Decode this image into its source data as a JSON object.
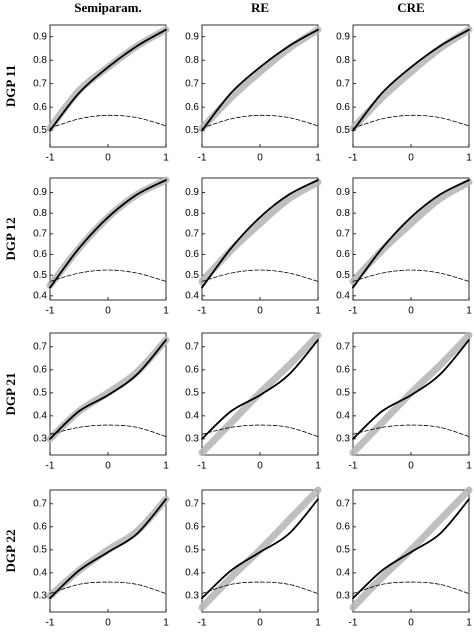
{
  "column_titles": [
    "Semiparam.",
    "RE",
    "CRE"
  ],
  "row_labels": [
    "DGP 11",
    "DGP 12",
    "DGP 21",
    "DGP 22"
  ],
  "chart_data": [
    {
      "type": "line",
      "x": [
        -1,
        -0.5,
        0,
        0.5,
        1
      ],
      "xlim": [
        -1,
        1
      ],
      "xticks": [
        -1,
        0,
        1
      ],
      "ylim": [
        0.43,
        0.95
      ],
      "yticks": [
        0.5,
        0.6,
        0.7,
        0.8,
        0.9
      ],
      "series": [
        {
          "color": "#b4b4b4",
          "line_style": "band",
          "values": [
            0.51,
            0.67,
            0.77,
            0.86,
            0.93
          ]
        },
        {
          "color": "#000000",
          "line_style": "solid",
          "values": [
            0.5,
            0.66,
            0.77,
            0.86,
            0.93
          ]
        },
        {
          "color": "#000000",
          "line_style": "dashed",
          "values": [
            0.51,
            0.55,
            0.565,
            0.555,
            0.52
          ]
        }
      ]
    },
    {
      "type": "line",
      "x": [
        -1,
        -0.5,
        0,
        0.5,
        1
      ],
      "xlim": [
        -1,
        1
      ],
      "xticks": [
        -1,
        0,
        1
      ],
      "ylim": [
        0.43,
        0.95
      ],
      "yticks": [
        0.5,
        0.6,
        0.7,
        0.8,
        0.9
      ],
      "series": [
        {
          "color": "#b4b4b4",
          "line_style": "band",
          "values": [
            0.51,
            0.64,
            0.75,
            0.85,
            0.93
          ]
        },
        {
          "color": "#000000",
          "line_style": "solid",
          "values": [
            0.5,
            0.66,
            0.77,
            0.86,
            0.93
          ]
        },
        {
          "color": "#000000",
          "line_style": "dashed",
          "values": [
            0.51,
            0.55,
            0.565,
            0.555,
            0.52
          ]
        }
      ]
    },
    {
      "type": "line",
      "x": [
        -1,
        -0.5,
        0,
        0.5,
        1
      ],
      "xlim": [
        -1,
        1
      ],
      "xticks": [
        -1,
        0,
        1
      ],
      "ylim": [
        0.43,
        0.95
      ],
      "yticks": [
        0.5,
        0.6,
        0.7,
        0.8,
        0.9
      ],
      "series": [
        {
          "color": "#b4b4b4",
          "line_style": "band",
          "values": [
            0.51,
            0.64,
            0.75,
            0.85,
            0.93
          ]
        },
        {
          "color": "#000000",
          "line_style": "solid",
          "values": [
            0.5,
            0.66,
            0.77,
            0.86,
            0.93
          ]
        },
        {
          "color": "#000000",
          "line_style": "dashed",
          "values": [
            0.51,
            0.55,
            0.565,
            0.555,
            0.52
          ]
        }
      ]
    },
    {
      "type": "line",
      "x": [
        -1,
        -0.5,
        0,
        0.5,
        1
      ],
      "xlim": [
        -1,
        1
      ],
      "xticks": [
        -1,
        0,
        1
      ],
      "ylim": [
        0.38,
        0.97
      ],
      "yticks": [
        0.4,
        0.5,
        0.6,
        0.7,
        0.8,
        0.9
      ],
      "series": [
        {
          "color": "#b4b4b4",
          "line_style": "band",
          "values": [
            0.45,
            0.63,
            0.78,
            0.89,
            0.96
          ]
        },
        {
          "color": "#000000",
          "line_style": "solid",
          "values": [
            0.44,
            0.63,
            0.78,
            0.89,
            0.96
          ]
        },
        {
          "color": "#000000",
          "line_style": "dashed",
          "values": [
            0.47,
            0.51,
            0.525,
            0.51,
            0.47
          ]
        }
      ]
    },
    {
      "type": "line",
      "x": [
        -1,
        -0.5,
        0,
        0.5,
        1
      ],
      "xlim": [
        -1,
        1
      ],
      "xticks": [
        -1,
        0,
        1
      ],
      "ylim": [
        0.38,
        0.97
      ],
      "yticks": [
        0.4,
        0.5,
        0.6,
        0.7,
        0.8,
        0.9
      ],
      "series": [
        {
          "color": "#b4b4b4",
          "line_style": "band",
          "values": [
            0.47,
            0.62,
            0.75,
            0.87,
            0.95
          ]
        },
        {
          "color": "#000000",
          "line_style": "solid",
          "values": [
            0.44,
            0.63,
            0.78,
            0.89,
            0.96
          ]
        },
        {
          "color": "#000000",
          "line_style": "dashed",
          "values": [
            0.47,
            0.51,
            0.525,
            0.51,
            0.47
          ]
        }
      ]
    },
    {
      "type": "line",
      "x": [
        -1,
        -0.5,
        0,
        0.5,
        1
      ],
      "xlim": [
        -1,
        1
      ],
      "xticks": [
        -1,
        0,
        1
      ],
      "ylim": [
        0.38,
        0.97
      ],
      "yticks": [
        0.4,
        0.5,
        0.6,
        0.7,
        0.8,
        0.9
      ],
      "series": [
        {
          "color": "#b4b4b4",
          "line_style": "band",
          "values": [
            0.47,
            0.62,
            0.75,
            0.87,
            0.95
          ]
        },
        {
          "color": "#000000",
          "line_style": "solid",
          "values": [
            0.44,
            0.63,
            0.78,
            0.89,
            0.96
          ]
        },
        {
          "color": "#000000",
          "line_style": "dashed",
          "values": [
            0.47,
            0.51,
            0.525,
            0.51,
            0.47
          ]
        }
      ]
    },
    {
      "type": "line",
      "x": [
        -1,
        -0.5,
        0,
        0.5,
        1
      ],
      "xlim": [
        -1,
        1
      ],
      "xticks": [
        -1,
        0,
        1
      ],
      "ylim": [
        0.23,
        0.76
      ],
      "yticks": [
        0.3,
        0.4,
        0.5,
        0.6,
        0.7
      ],
      "series": [
        {
          "color": "#b4b4b4",
          "line_style": "band",
          "values": [
            0.3,
            0.42,
            0.5,
            0.59,
            0.73
          ]
        },
        {
          "color": "#000000",
          "line_style": "solid",
          "values": [
            0.3,
            0.42,
            0.49,
            0.58,
            0.73
          ]
        },
        {
          "color": "#000000",
          "line_style": "dashed",
          "values": [
            0.32,
            0.35,
            0.36,
            0.35,
            0.31
          ]
        }
      ]
    },
    {
      "type": "line",
      "x": [
        -1,
        -0.5,
        0,
        0.5,
        1
      ],
      "xlim": [
        -1,
        1
      ],
      "xticks": [
        -1,
        0,
        1
      ],
      "ylim": [
        0.23,
        0.76
      ],
      "yticks": [
        0.3,
        0.4,
        0.5,
        0.6,
        0.7
      ],
      "series": [
        {
          "color": "#b4b4b4",
          "line_style": "band",
          "values": [
            0.24,
            0.37,
            0.5,
            0.62,
            0.75
          ]
        },
        {
          "color": "#000000",
          "line_style": "solid",
          "values": [
            0.3,
            0.42,
            0.49,
            0.58,
            0.73
          ]
        },
        {
          "color": "#000000",
          "line_style": "dashed",
          "values": [
            0.32,
            0.35,
            0.36,
            0.35,
            0.31
          ]
        }
      ]
    },
    {
      "type": "line",
      "x": [
        -1,
        -0.5,
        0,
        0.5,
        1
      ],
      "xlim": [
        -1,
        1
      ],
      "xticks": [
        -1,
        0,
        1
      ],
      "ylim": [
        0.23,
        0.76
      ],
      "yticks": [
        0.3,
        0.4,
        0.5,
        0.6,
        0.7
      ],
      "series": [
        {
          "color": "#b4b4b4",
          "line_style": "band",
          "values": [
            0.24,
            0.37,
            0.5,
            0.62,
            0.75
          ]
        },
        {
          "color": "#000000",
          "line_style": "solid",
          "values": [
            0.3,
            0.42,
            0.49,
            0.58,
            0.73
          ]
        },
        {
          "color": "#000000",
          "line_style": "dashed",
          "values": [
            0.32,
            0.35,
            0.36,
            0.35,
            0.31
          ]
        }
      ]
    },
    {
      "type": "line",
      "x": [
        -1,
        -0.5,
        0,
        0.5,
        1
      ],
      "xlim": [
        -1,
        1
      ],
      "xticks": [
        -1,
        0,
        1
      ],
      "ylim": [
        0.23,
        0.76
      ],
      "yticks": [
        0.3,
        0.4,
        0.5,
        0.6,
        0.7
      ],
      "series": [
        {
          "color": "#b4b4b4",
          "line_style": "band",
          "values": [
            0.3,
            0.41,
            0.5,
            0.58,
            0.72
          ]
        },
        {
          "color": "#000000",
          "line_style": "solid",
          "values": [
            0.29,
            0.41,
            0.49,
            0.57,
            0.72
          ]
        },
        {
          "color": "#000000",
          "line_style": "dashed",
          "values": [
            0.31,
            0.35,
            0.36,
            0.35,
            0.31
          ]
        }
      ]
    },
    {
      "type": "line",
      "x": [
        -1,
        -0.5,
        0,
        0.5,
        1
      ],
      "xlim": [
        -1,
        1
      ],
      "xticks": [
        -1,
        0,
        1
      ],
      "ylim": [
        0.23,
        0.76
      ],
      "yticks": [
        0.3,
        0.4,
        0.5,
        0.6,
        0.7
      ],
      "series": [
        {
          "color": "#b4b4b4",
          "line_style": "band",
          "values": [
            0.25,
            0.38,
            0.5,
            0.63,
            0.76
          ]
        },
        {
          "color": "#000000",
          "line_style": "solid",
          "values": [
            0.29,
            0.41,
            0.49,
            0.57,
            0.72
          ]
        },
        {
          "color": "#000000",
          "line_style": "dashed",
          "values": [
            0.31,
            0.35,
            0.36,
            0.35,
            0.31
          ]
        }
      ]
    },
    {
      "type": "line",
      "x": [
        -1,
        -0.5,
        0,
        0.5,
        1
      ],
      "xlim": [
        -1,
        1
      ],
      "xticks": [
        -1,
        0,
        1
      ],
      "ylim": [
        0.23,
        0.76
      ],
      "yticks": [
        0.3,
        0.4,
        0.5,
        0.6,
        0.7
      ],
      "series": [
        {
          "color": "#b4b4b4",
          "line_style": "band",
          "values": [
            0.25,
            0.38,
            0.5,
            0.63,
            0.76
          ]
        },
        {
          "color": "#000000",
          "line_style": "solid",
          "values": [
            0.29,
            0.41,
            0.49,
            0.57,
            0.72
          ]
        },
        {
          "color": "#000000",
          "line_style": "dashed",
          "values": [
            0.31,
            0.35,
            0.36,
            0.35,
            0.31
          ]
        }
      ]
    }
  ]
}
